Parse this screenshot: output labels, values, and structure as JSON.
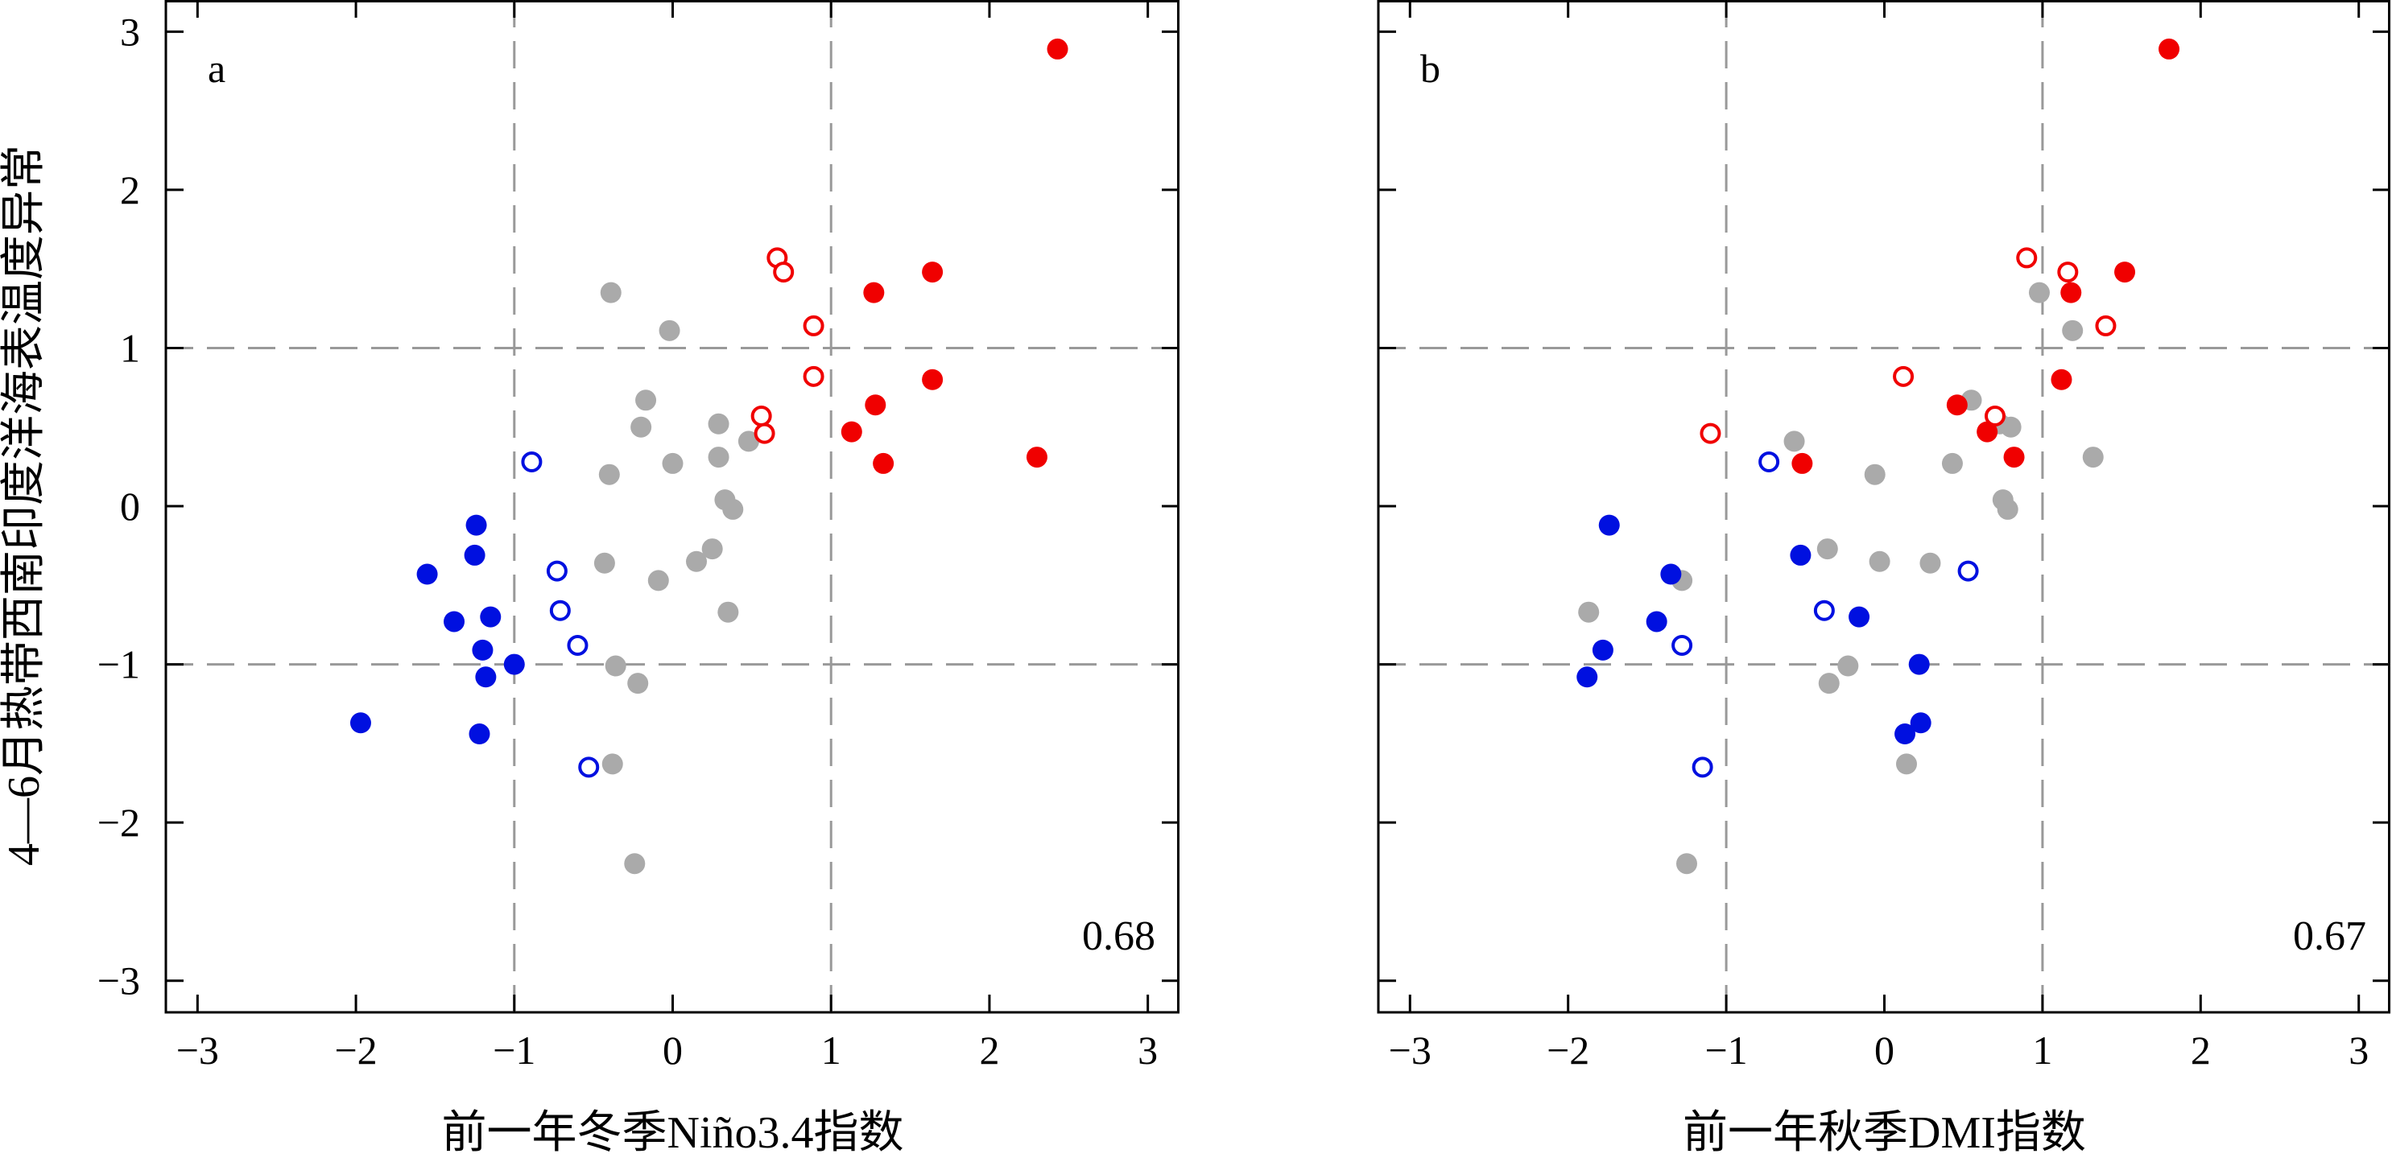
{
  "figure": {
    "ylabel": "4—6月热带西南印度洋海表温度异常"
  },
  "chart_data": [
    {
      "type": "scatter",
      "panel_label": "a",
      "xlabel": "前一年冬季Niño3.4指数",
      "ylabel": "4—6月热带西南印度洋海表温度异常",
      "xlim": [
        -3.2,
        3.2
      ],
      "ylim": [
        -3.2,
        3.2
      ],
      "xticks": [
        "−3",
        "−2",
        "−1",
        "0",
        "1",
        "2",
        "3"
      ],
      "yticks": [
        "−3",
        "−2",
        "−1",
        "0",
        "1",
        "2",
        "3"
      ],
      "dashed_lines": {
        "x": [
          -1,
          1
        ],
        "y": [
          -1,
          1
        ]
      },
      "grid": false,
      "annotation": "0.68",
      "colors": {
        "red": "#f00000",
        "blue": "#0010e0",
        "gray": "#aaaaaa",
        "dash": "#999999"
      },
      "series": [
        {
          "color": "red",
          "style": "filled",
          "points": [
            [
              2.43,
              2.89
            ],
            [
              1.27,
              1.35
            ],
            [
              1.64,
              1.48
            ],
            [
              1.64,
              0.8
            ],
            [
              1.28,
              0.64
            ],
            [
              1.13,
              0.47
            ],
            [
              1.33,
              0.27
            ],
            [
              2.3,
              0.31
            ]
          ]
        },
        {
          "color": "red",
          "style": "open",
          "points": [
            [
              0.66,
              1.57
            ],
            [
              0.7,
              1.48
            ],
            [
              0.89,
              1.14
            ],
            [
              0.89,
              0.82
            ],
            [
              0.56,
              0.57
            ],
            [
              0.58,
              0.46
            ]
          ]
        },
        {
          "color": "blue",
          "style": "filled",
          "points": [
            [
              -1.24,
              -0.12
            ],
            [
              -1.25,
              -0.31
            ],
            [
              -1.55,
              -0.43
            ],
            [
              -1.38,
              -0.73
            ],
            [
              -1.15,
              -0.7
            ],
            [
              -1.2,
              -0.91
            ],
            [
              -1.18,
              -1.08
            ],
            [
              -1.0,
              -1.0
            ],
            [
              -1.97,
              -1.37
            ],
            [
              -1.22,
              -1.44
            ]
          ]
        },
        {
          "color": "blue",
          "style": "open",
          "points": [
            [
              -0.89,
              0.28
            ],
            [
              -0.73,
              -0.41
            ],
            [
              -0.71,
              -0.66
            ],
            [
              -0.6,
              -0.88
            ],
            [
              -0.53,
              -1.65
            ]
          ]
        },
        {
          "color": "gray",
          "style": "filled",
          "points": [
            [
              -0.39,
              1.35
            ],
            [
              -0.02,
              1.11
            ],
            [
              -0.17,
              0.67
            ],
            [
              -0.2,
              0.5
            ],
            [
              0.29,
              0.52
            ],
            [
              0.48,
              0.41
            ],
            [
              0.0,
              0.27
            ],
            [
              0.29,
              0.31
            ],
            [
              -0.4,
              0.2
            ],
            [
              0.33,
              0.04
            ],
            [
              0.38,
              -0.02
            ],
            [
              0.25,
              -0.27
            ],
            [
              0.15,
              -0.35
            ],
            [
              -0.43,
              -0.36
            ],
            [
              -0.09,
              -0.47
            ],
            [
              0.35,
              -0.67
            ],
            [
              -0.36,
              -1.01
            ],
            [
              -0.22,
              -1.12
            ],
            [
              -0.38,
              -1.63
            ],
            [
              -0.24,
              -2.26
            ]
          ]
        }
      ]
    },
    {
      "type": "scatter",
      "panel_label": "b",
      "xlabel": "前一年秋季DMI指数",
      "ylabel": "4—6月热带西南印度洋海表温度异常",
      "xlim": [
        -3.2,
        3.2
      ],
      "ylim": [
        -3.2,
        3.2
      ],
      "xticks": [
        "−3",
        "−2",
        "−1",
        "0",
        "1",
        "2",
        "3"
      ],
      "yticks": [
        "−3",
        "−2",
        "−1",
        "0",
        "1",
        "2",
        "3"
      ],
      "dashed_lines": {
        "x": [
          -1,
          1
        ],
        "y": [
          -1,
          1
        ]
      },
      "grid": false,
      "annotation": "0.67",
      "colors": {
        "red": "#f00000",
        "blue": "#0010e0",
        "gray": "#aaaaaa",
        "dash": "#999999"
      },
      "series": [
        {
          "color": "red",
          "style": "filled",
          "points": [
            [
              1.8,
              2.89
            ],
            [
              1.52,
              1.48
            ],
            [
              1.18,
              1.35
            ],
            [
              1.12,
              0.8
            ],
            [
              0.46,
              0.64
            ],
            [
              0.65,
              0.47
            ],
            [
              0.82,
              0.31
            ],
            [
              -0.52,
              0.27
            ]
          ]
        },
        {
          "color": "red",
          "style": "open",
          "points": [
            [
              0.9,
              1.57
            ],
            [
              1.16,
              1.48
            ],
            [
              1.4,
              1.14
            ],
            [
              0.12,
              0.82
            ],
            [
              0.7,
              0.57
            ],
            [
              -1.1,
              0.46
            ]
          ]
        },
        {
          "color": "blue",
          "style": "filled",
          "points": [
            [
              -1.74,
              -0.12
            ],
            [
              -0.53,
              -0.31
            ],
            [
              -1.35,
              -0.43
            ],
            [
              -1.44,
              -0.73
            ],
            [
              -0.16,
              -0.7
            ],
            [
              -1.78,
              -0.91
            ],
            [
              -1.88,
              -1.08
            ],
            [
              0.22,
              -1.0
            ],
            [
              0.23,
              -1.37
            ],
            [
              0.13,
              -1.44
            ]
          ]
        },
        {
          "color": "blue",
          "style": "open",
          "points": [
            [
              -0.73,
              0.28
            ],
            [
              0.53,
              -0.41
            ],
            [
              -0.38,
              -0.66
            ],
            [
              -1.28,
              -0.88
            ],
            [
              -1.15,
              -1.65
            ]
          ]
        },
        {
          "color": "gray",
          "style": "filled",
          "points": [
            [
              0.98,
              1.35
            ],
            [
              1.19,
              1.11
            ],
            [
              0.55,
              0.67
            ],
            [
              0.8,
              0.5
            ],
            [
              0.73,
              0.52
            ],
            [
              -0.57,
              0.41
            ],
            [
              0.43,
              0.27
            ],
            [
              1.32,
              0.31
            ],
            [
              -0.06,
              0.2
            ],
            [
              0.75,
              0.04
            ],
            [
              0.78,
              -0.02
            ],
            [
              -0.36,
              -0.27
            ],
            [
              -0.03,
              -0.35
            ],
            [
              0.29,
              -0.36
            ],
            [
              -1.28,
              -0.47
            ],
            [
              -1.87,
              -0.67
            ],
            [
              -0.23,
              -1.01
            ],
            [
              -0.35,
              -1.12
            ],
            [
              0.14,
              -1.63
            ],
            [
              -1.25,
              -2.26
            ]
          ]
        }
      ]
    }
  ]
}
